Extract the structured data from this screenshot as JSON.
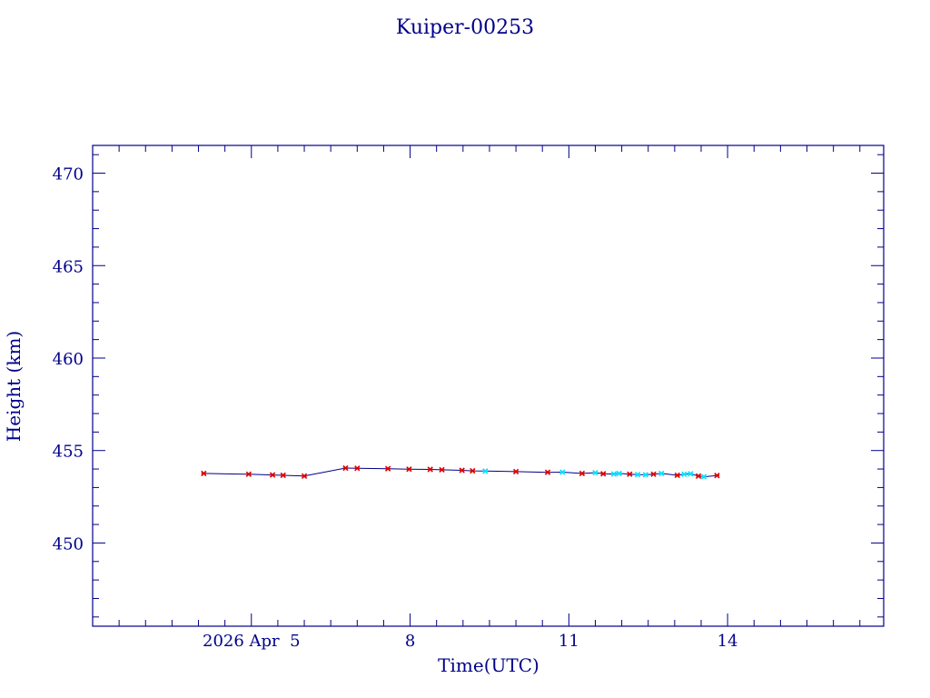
{
  "chart_data": {
    "type": "line",
    "title": "Kuiper-00253",
    "xlabel": "Time(UTC)",
    "ylabel": "Height (km)",
    "xlim_days": [
      1.0,
      15.95
    ],
    "ylim": [
      445.5,
      471.5
    ],
    "x_major_ticks": [
      {
        "day": 4.0,
        "label": "2026 Apr  5"
      },
      {
        "day": 7.0,
        "label": "8"
      },
      {
        "day": 10.0,
        "label": "11"
      },
      {
        "day": 13.0,
        "label": "14"
      }
    ],
    "y_major_ticks": [
      450,
      455,
      460,
      465,
      470
    ],
    "series": [
      {
        "values": [
          {
            "x": 3.1,
            "y": 453.76,
            "c": "r"
          },
          {
            "x": 3.95,
            "y": 453.72,
            "c": "r"
          },
          {
            "x": 4.4,
            "y": 453.68,
            "c": "r"
          },
          {
            "x": 4.6,
            "y": 453.66,
            "c": "r"
          },
          {
            "x": 5.0,
            "y": 453.62,
            "c": "r"
          },
          {
            "x": 5.78,
            "y": 454.05,
            "c": "r"
          },
          {
            "x": 6.0,
            "y": 454.04,
            "c": "r"
          },
          {
            "x": 6.58,
            "y": 454.02,
            "c": "r"
          },
          {
            "x": 6.98,
            "y": 453.99,
            "c": "r"
          },
          {
            "x": 7.38,
            "y": 453.98,
            "c": "r"
          },
          {
            "x": 7.6,
            "y": 453.96,
            "c": "r"
          },
          {
            "x": 7.98,
            "y": 453.93,
            "c": "r"
          },
          {
            "x": 8.18,
            "y": 453.9,
            "c": "r"
          },
          {
            "x": 8.42,
            "y": 453.89,
            "c": "c"
          },
          {
            "x": 9.0,
            "y": 453.86,
            "c": "r"
          },
          {
            "x": 9.6,
            "y": 453.82,
            "c": "r"
          },
          {
            "x": 9.88,
            "y": 453.83,
            "c": "c"
          },
          {
            "x": 10.25,
            "y": 453.76,
            "c": "r"
          },
          {
            "x": 10.5,
            "y": 453.8,
            "c": "c"
          },
          {
            "x": 10.65,
            "y": 453.74,
            "c": "r"
          },
          {
            "x": 10.85,
            "y": 453.73,
            "c": "c"
          },
          {
            "x": 10.95,
            "y": 453.76,
            "c": "c"
          },
          {
            "x": 11.15,
            "y": 453.72,
            "c": "r"
          },
          {
            "x": 11.3,
            "y": 453.7,
            "c": "c"
          },
          {
            "x": 11.45,
            "y": 453.69,
            "c": "c"
          },
          {
            "x": 11.6,
            "y": 453.72,
            "c": "r"
          },
          {
            "x": 11.75,
            "y": 453.76,
            "c": "c"
          },
          {
            "x": 12.05,
            "y": 453.66,
            "c": "r"
          },
          {
            "x": 12.18,
            "y": 453.72,
            "c": "c"
          },
          {
            "x": 12.3,
            "y": 453.74,
            "c": "c"
          },
          {
            "x": 12.45,
            "y": 453.62,
            "c": "r"
          },
          {
            "x": 12.55,
            "y": 453.58,
            "c": "c"
          },
          {
            "x": 12.8,
            "y": 453.65,
            "c": "r"
          }
        ]
      }
    ],
    "colors": {
      "axis": "#00008b",
      "line": "#00008b",
      "marker_r": "#dc0000",
      "marker_c": "#00e0ff"
    }
  }
}
